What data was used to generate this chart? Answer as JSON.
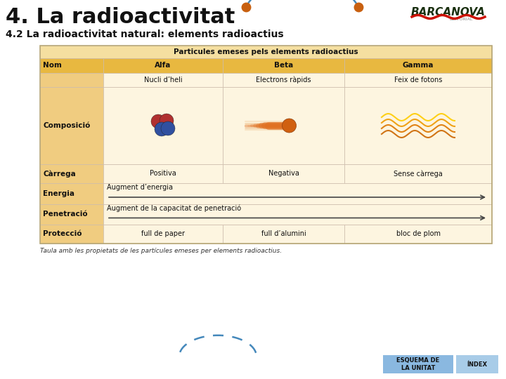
{
  "title": "4. La radioactivitat",
  "subtitle": "4.2 La radioactivitat natural: elements radioactius",
  "background_color": "#ffffff",
  "table_header": "Particules emeses pels elements radioactius",
  "table_header_bg": "#f5dfa0",
  "col_header_bg": "#e8b840",
  "row_label_bg": "#f0cc80",
  "cell_bg": "#fdf5e0",
  "col_headers": [
    "Nom",
    "Alfa",
    "Beta",
    "Gamma"
  ],
  "sub_row": [
    "Nucli d’heli",
    "Electrons ràpids",
    "Feix de fotons"
  ],
  "carrega_row": [
    "Positiva",
    "Negativa",
    "Sense càrrega"
  ],
  "energia_label": "Augment d’energia",
  "penetracio_label": "Augment de la capacitat de penetració",
  "proteccio_row": [
    "full de paper",
    "full d’alumini",
    "bloc de plom"
  ],
  "caption": "Taula amb les propietats de les partícules emeses per elements radioactius.",
  "footer_left_text": "ESQUEMA DE\nLA UNITAT",
  "footer_left_bg": "#8ab8e0",
  "footer_right_text": "ÍNDEX",
  "footer_right_bg": "#a8cce8",
  "barcanova_color": "#1a3010",
  "editorial_color": "#666666",
  "arc_color": "#4488bb",
  "ball_color": "#c86010",
  "arrow_color": "#444444",
  "border_color": "#b8a878",
  "grid_color": "#ccbbaa"
}
